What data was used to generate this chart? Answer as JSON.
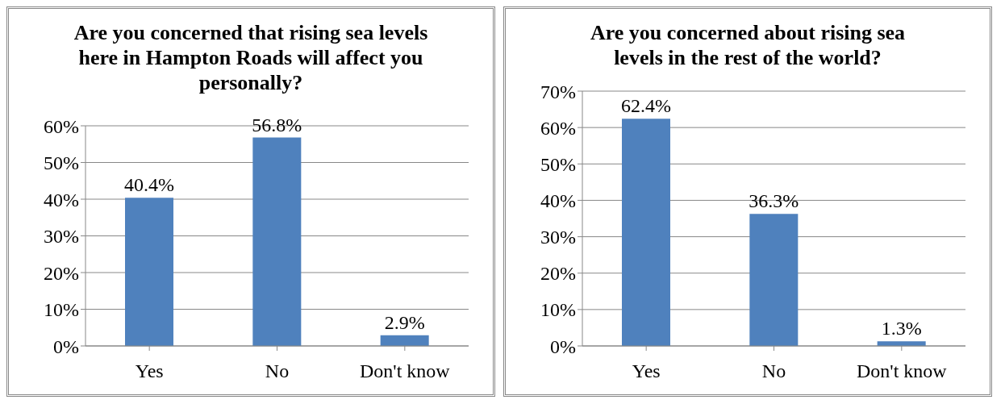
{
  "chart_data": [
    {
      "type": "bar",
      "title": "Are you concerned that rising sea levels here in Hampton Roads will affect you personally?",
      "categories": [
        "Yes",
        "No",
        "Don't know"
      ],
      "values": [
        40.4,
        56.8,
        2.9
      ],
      "value_labels": [
        "40.4%",
        "56.8%",
        "2.9%"
      ],
      "color": "#4f81bd",
      "ylim": [
        0,
        60
      ],
      "yticks": [
        {
          "value": 0,
          "label": "0%"
        },
        {
          "value": 10,
          "label": "10%"
        },
        {
          "value": 20,
          "label": "20%"
        },
        {
          "value": 30,
          "label": "30%"
        },
        {
          "value": 40,
          "label": "40%"
        },
        {
          "value": 50,
          "label": "50%"
        },
        {
          "value": 60,
          "label": "60%"
        }
      ],
      "grid": "y",
      "legend": false
    },
    {
      "type": "bar",
      "title": "Are you concerned about rising sea levels in the rest of the world?",
      "categories": [
        "Yes",
        "No",
        "Don't know"
      ],
      "values": [
        62.4,
        36.3,
        1.3
      ],
      "value_labels": [
        "62.4%",
        "36.3%",
        "1.3%"
      ],
      "color": "#4f81bd",
      "ylim": [
        0,
        70
      ],
      "yticks": [
        {
          "value": 0,
          "label": "0%"
        },
        {
          "value": 10,
          "label": "10%"
        },
        {
          "value": 20,
          "label": "20%"
        },
        {
          "value": 30,
          "label": "30%"
        },
        {
          "value": 40,
          "label": "40%"
        },
        {
          "value": 50,
          "label": "50%"
        },
        {
          "value": 60,
          "label": "60%"
        },
        {
          "value": 70,
          "label": "70%"
        }
      ],
      "grid": "y",
      "legend": false
    }
  ]
}
